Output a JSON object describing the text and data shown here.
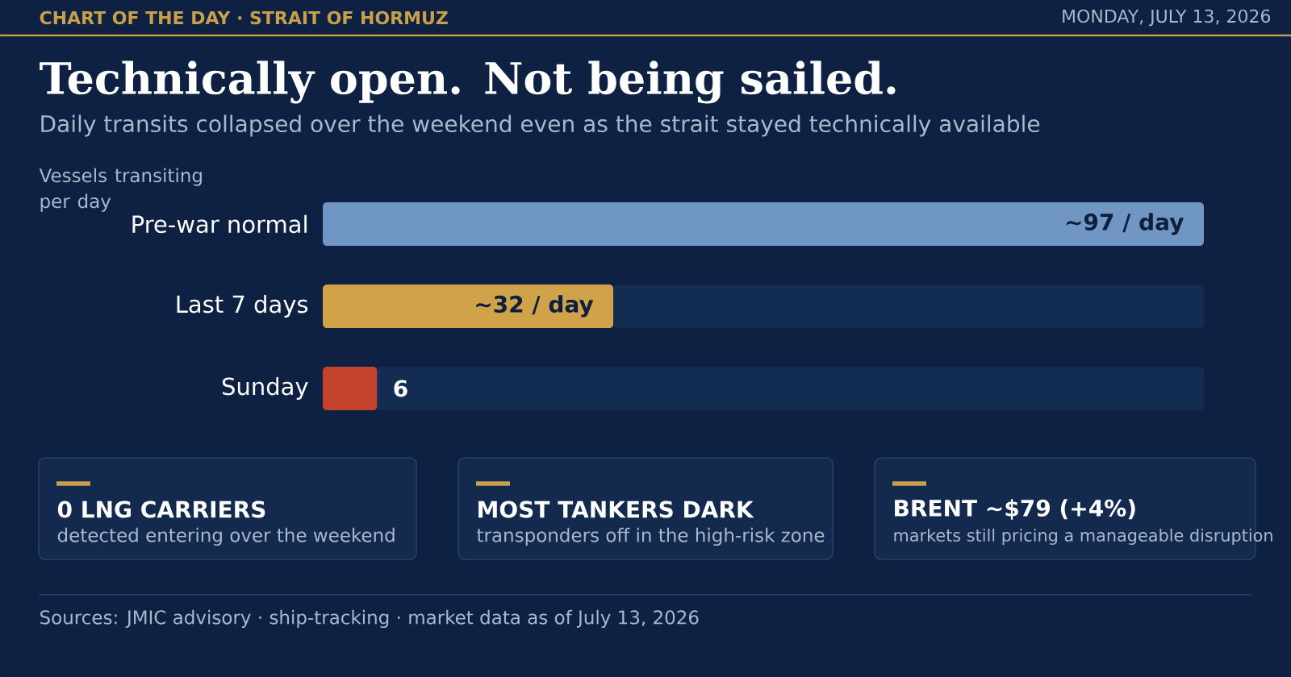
{
  "chart_data": {
    "type": "bar",
    "orientation": "horizontal",
    "stacked": true,
    "title": "Technically open. Not being sailed.",
    "subtitle": "Daily transits collapsed over the weekend even as the strait stayed technically available",
    "ylabel": "Vessels transiting per day",
    "categories": [
      "Pre-war normal",
      "Last 7 days",
      "Sunday"
    ],
    "series": [
      {
        "colors": [
          "#7097c4",
          "#d0a24a",
          "#c4432f"
        ],
        "values": [
          97,
          32,
          6
        ],
        "value_labels": [
          "~97 / day",
          "~32 / day",
          "6"
        ]
      },
      {
        "color": "#132c52",
        "values": [
          0,
          65,
          91
        ]
      }
    ],
    "xlim": [
      0,
      97
    ],
    "tick_labels": "y",
    "annotations": [
      "CHART OF THE DAY · STRAIT OF HORMUZ",
      "MONDAY, JULY 13, 2026",
      "0 LNG CARRIERS",
      "detected entering over the weekend",
      "MOST TANKERS DARK",
      "transponders off in the high-risk zone",
      "BRENT ~$79  (+4%)",
      "markets still pricing a manageable disruption",
      "Sources: JMIC advisory · ship-tracking · market data as of July 13, 2026"
    ]
  }
}
